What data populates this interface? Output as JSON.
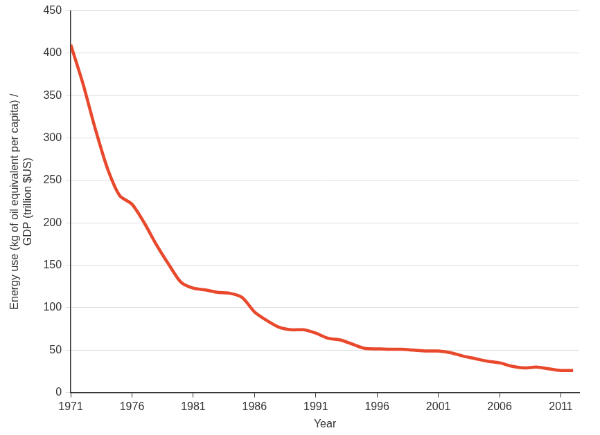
{
  "chart_data": {
    "type": "line",
    "x_label": "Year",
    "y_label": [
      "Energy use (kg of oil equivalent per capita) /",
      "GDP (trillion $US)"
    ],
    "x": [
      1971,
      1972,
      1973,
      1974,
      1975,
      1976,
      1977,
      1978,
      1979,
      1980,
      1981,
      1982,
      1983,
      1984,
      1985,
      1986,
      1987,
      1988,
      1989,
      1990,
      1991,
      1992,
      1993,
      1994,
      1995,
      1996,
      1997,
      1998,
      1999,
      2000,
      2001,
      2002,
      2003,
      2004,
      2005,
      2006,
      2007,
      2008,
      2009,
      2010,
      2011,
      2012
    ],
    "values": [
      410,
      364,
      311,
      264,
      232,
      222,
      200,
      174,
      151,
      130,
      123,
      121,
      118,
      117,
      112,
      95,
      85,
      77,
      74,
      74,
      70,
      64,
      62,
      57,
      52,
      51.5,
      51,
      51,
      50,
      49,
      49,
      47,
      43,
      40,
      37,
      35,
      31,
      29,
      30,
      28,
      26,
      26
    ],
    "color": "#e8482c",
    "xlim": [
      1971,
      2012.5
    ],
    "xticks": [
      1971,
      1976,
      1981,
      1986,
      1991,
      1996,
      2001,
      2006,
      2011
    ],
    "ylim": [
      0,
      450
    ],
    "yticks": [
      0,
      50,
      100,
      150,
      200,
      250,
      300,
      350,
      400,
      450
    ],
    "grid": true
  }
}
